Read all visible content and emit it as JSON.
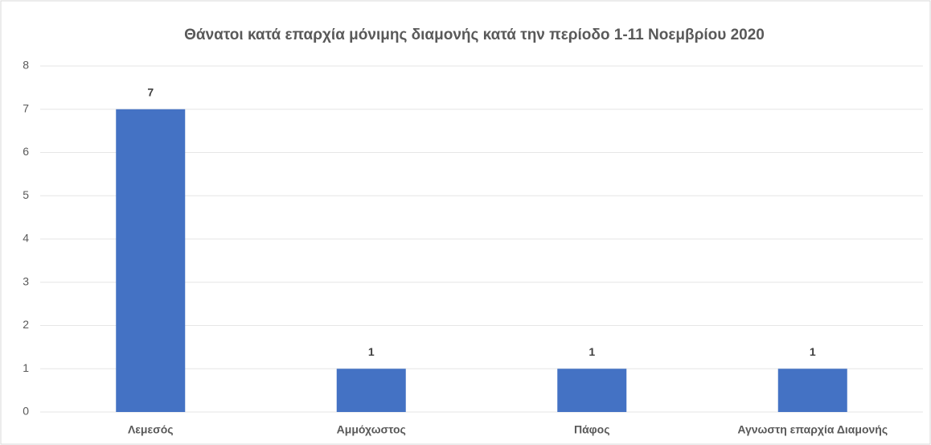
{
  "chart_data": {
    "type": "bar",
    "title": "Θάνατοι κατά επαρχία μόνιμης διαμονής κατά την περίοδο 1-11 Νοεμβρίου 2020",
    "categories": [
      "Λεμεσός",
      "Αμμόχωστος",
      "Πάφος",
      "Αγνωστη επαρχία Διαμονής"
    ],
    "values": [
      7,
      1,
      1,
      1
    ],
    "color": "#4472c4",
    "ylim": [
      0,
      8
    ],
    "yticks": [
      0,
      1,
      2,
      3,
      4,
      5,
      6,
      7,
      8
    ],
    "grid": true
  }
}
